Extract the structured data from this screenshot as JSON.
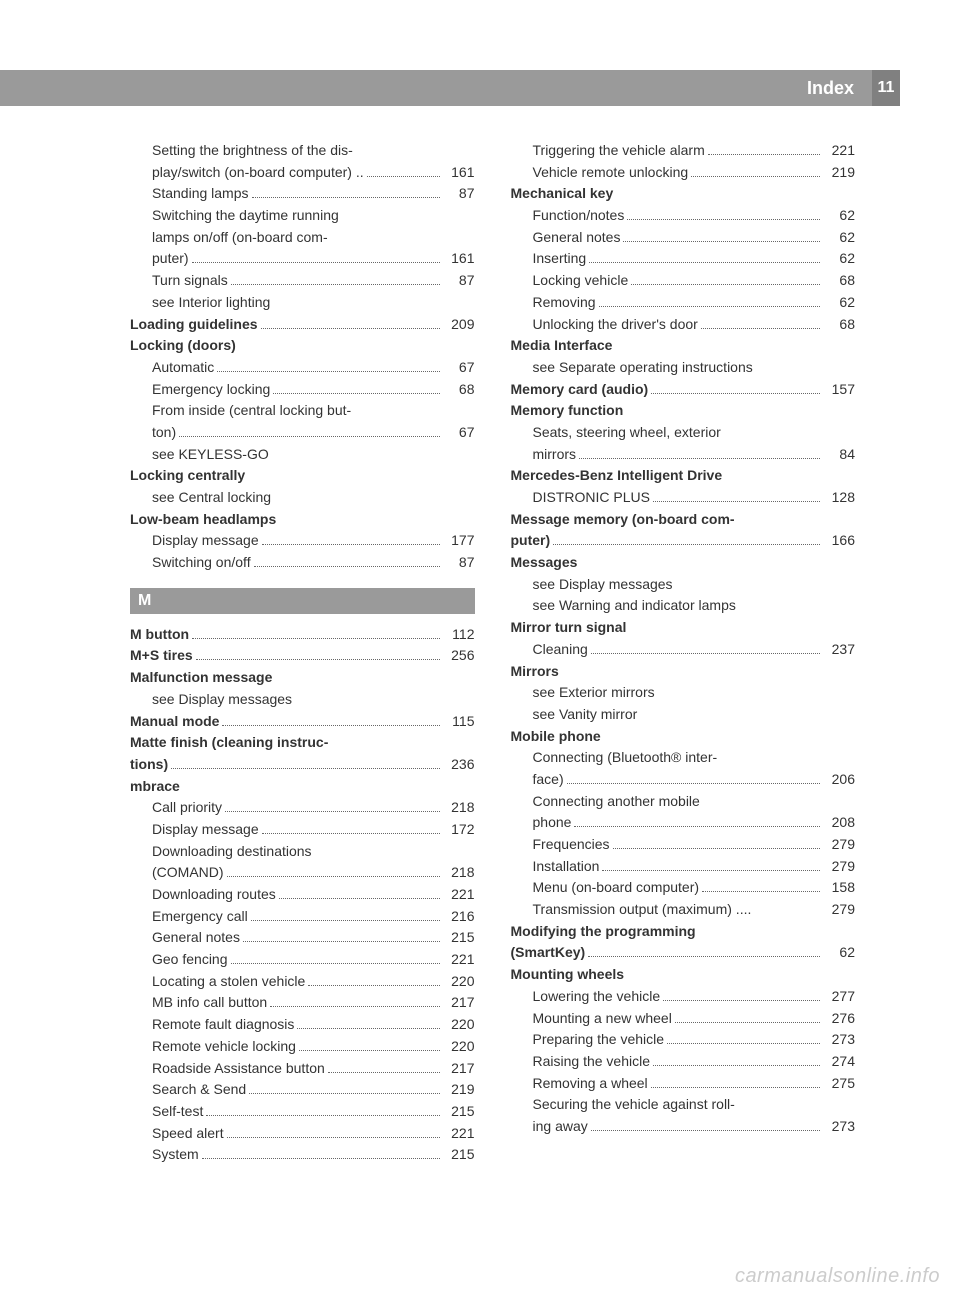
{
  "header": {
    "title": "Index",
    "page_number": "11"
  },
  "section_m_label": "M",
  "watermark": "carmanualsonline.info",
  "left": [
    {
      "type": "sub-multi",
      "lines": [
        "Setting the brightness of the dis-",
        "play/switch (on-board computer) .."
      ],
      "page": "161"
    },
    {
      "type": "sub",
      "label": "Standing lamps",
      "page": "87"
    },
    {
      "type": "sub-multi",
      "lines": [
        "Switching the daytime running",
        "lamps on/off (on-board com-",
        "puter)"
      ],
      "page": "161"
    },
    {
      "type": "sub",
      "label": "Turn signals",
      "page": "87"
    },
    {
      "type": "subsee",
      "label": "see Interior lighting"
    },
    {
      "type": "main",
      "bold": "Loading guidelines",
      "page": "209"
    },
    {
      "type": "mainhead",
      "bold": "Locking (doors)"
    },
    {
      "type": "sub",
      "label": "Automatic",
      "page": "67"
    },
    {
      "type": "sub",
      "label": "Emergency locking",
      "page": "68"
    },
    {
      "type": "sub-multi",
      "lines": [
        "From inside (central locking but-",
        "ton)"
      ],
      "page": "67"
    },
    {
      "type": "subsee",
      "label": "see KEYLESS-GO"
    },
    {
      "type": "mainhead",
      "bold": "Locking centrally"
    },
    {
      "type": "subsee",
      "label": "see Central locking"
    },
    {
      "type": "mainhead",
      "bold": "Low-beam headlamps"
    },
    {
      "type": "sub",
      "label": "Display message",
      "page": "177"
    },
    {
      "type": "sub",
      "label": "Switching on/off",
      "page": "87"
    },
    {
      "type": "section",
      "key": "M"
    },
    {
      "type": "main",
      "bold": "M button",
      "page": "112"
    },
    {
      "type": "main",
      "bold": "M+S tires",
      "page": "256"
    },
    {
      "type": "mainhead",
      "bold": "Malfunction message"
    },
    {
      "type": "subsee",
      "label": "see Display messages"
    },
    {
      "type": "main",
      "bold": "Manual mode",
      "page": "115"
    },
    {
      "type": "main-multi",
      "boldlines": [
        "Matte finish (cleaning instruc-",
        "tions)"
      ],
      "page": "236"
    },
    {
      "type": "mainhead",
      "bold": "mbrace"
    },
    {
      "type": "sub",
      "label": "Call priority",
      "page": "218"
    },
    {
      "type": "sub",
      "label": "Display message",
      "page": "172"
    },
    {
      "type": "sub-multi",
      "lines": [
        "Downloading destinations",
        "(COMAND)"
      ],
      "page": "218"
    },
    {
      "type": "sub",
      "label": "Downloading routes",
      "page": "221"
    },
    {
      "type": "sub",
      "label": "Emergency call",
      "page": "216"
    },
    {
      "type": "sub",
      "label": "General notes",
      "page": "215"
    },
    {
      "type": "sub",
      "label": "Geo fencing",
      "page": "221"
    },
    {
      "type": "sub",
      "label": "Locating a stolen vehicle",
      "page": "220"
    },
    {
      "type": "sub",
      "label": "MB info call button",
      "page": "217"
    },
    {
      "type": "sub",
      "label": "Remote fault diagnosis",
      "page": "220"
    },
    {
      "type": "sub",
      "label": "Remote vehicle locking",
      "page": "220"
    },
    {
      "type": "sub",
      "label": "Roadside Assistance button",
      "page": "217"
    },
    {
      "type": "sub",
      "label": "Search & Send",
      "page": "219"
    },
    {
      "type": "sub",
      "label": "Self-test",
      "page": "215"
    },
    {
      "type": "sub",
      "label": "Speed alert",
      "page": "221"
    },
    {
      "type": "sub",
      "label": "System",
      "page": "215"
    }
  ],
  "right": [
    {
      "type": "sub",
      "label": "Triggering the vehicle alarm",
      "page": "221"
    },
    {
      "type": "sub",
      "label": "Vehicle remote unlocking",
      "page": "219"
    },
    {
      "type": "mainhead",
      "bold": "Mechanical key"
    },
    {
      "type": "sub",
      "label": "Function/notes",
      "page": "62"
    },
    {
      "type": "sub",
      "label": "General notes",
      "page": "62"
    },
    {
      "type": "sub",
      "label": "Inserting",
      "page": "62"
    },
    {
      "type": "sub",
      "label": "Locking vehicle",
      "page": "68"
    },
    {
      "type": "sub",
      "label": "Removing",
      "page": "62"
    },
    {
      "type": "sub",
      "label": "Unlocking the driver's door",
      "page": "68"
    },
    {
      "type": "mainhead",
      "bold": "Media Interface"
    },
    {
      "type": "subsee",
      "label": "see Separate operating instructions"
    },
    {
      "type": "main",
      "bold": "Memory card (audio)",
      "page": "157"
    },
    {
      "type": "mainhead",
      "bold": "Memory function"
    },
    {
      "type": "sub-multi",
      "lines": [
        "Seats, steering wheel, exterior",
        "mirrors"
      ],
      "page": "84"
    },
    {
      "type": "mainhead",
      "bold": "Mercedes-Benz Intelligent Drive"
    },
    {
      "type": "sub",
      "label": "DISTRONIC PLUS",
      "page": "128"
    },
    {
      "type": "main-multi",
      "boldlines": [
        "Message memory (on-board com-",
        "puter)"
      ],
      "page": "166"
    },
    {
      "type": "mainhead",
      "bold": "Messages"
    },
    {
      "type": "subsee",
      "label": "see Display messages"
    },
    {
      "type": "subsee",
      "label": "see Warning and indicator lamps"
    },
    {
      "type": "mainhead",
      "bold": "Mirror turn signal"
    },
    {
      "type": "sub",
      "label": "Cleaning",
      "page": "237"
    },
    {
      "type": "mainhead",
      "bold": "Mirrors"
    },
    {
      "type": "subsee",
      "label": "see Exterior mirrors"
    },
    {
      "type": "subsee",
      "label": "see Vanity mirror"
    },
    {
      "type": "mainhead",
      "bold": "Mobile phone"
    },
    {
      "type": "sub-multi",
      "lines": [
        "Connecting (Bluetooth® inter-",
        "face)"
      ],
      "page": "206"
    },
    {
      "type": "sub-multi",
      "lines": [
        "Connecting another mobile",
        "phone"
      ],
      "page": "208"
    },
    {
      "type": "sub",
      "label": "Frequencies",
      "page": "279"
    },
    {
      "type": "sub",
      "label": "Installation",
      "page": "279"
    },
    {
      "type": "sub",
      "label": "Menu (on-board computer)",
      "page": "158"
    },
    {
      "type": "sub",
      "label": "Transmission output (maximum) ....",
      "page": "279",
      "nodots": true
    },
    {
      "type": "main-multi",
      "boldlines": [
        "Modifying the programming",
        "(SmartKey)"
      ],
      "page": "62"
    },
    {
      "type": "mainhead",
      "bold": "Mounting wheels"
    },
    {
      "type": "sub",
      "label": "Lowering the vehicle",
      "page": "277"
    },
    {
      "type": "sub",
      "label": "Mounting a new wheel",
      "page": "276"
    },
    {
      "type": "sub",
      "label": "Preparing the vehicle",
      "page": "273"
    },
    {
      "type": "sub",
      "label": "Raising the vehicle",
      "page": "274"
    },
    {
      "type": "sub",
      "label": "Removing a wheel",
      "page": "275"
    },
    {
      "type": "sub-multi",
      "lines": [
        "Securing the vehicle against roll-",
        "ing away"
      ],
      "page": "273"
    }
  ]
}
